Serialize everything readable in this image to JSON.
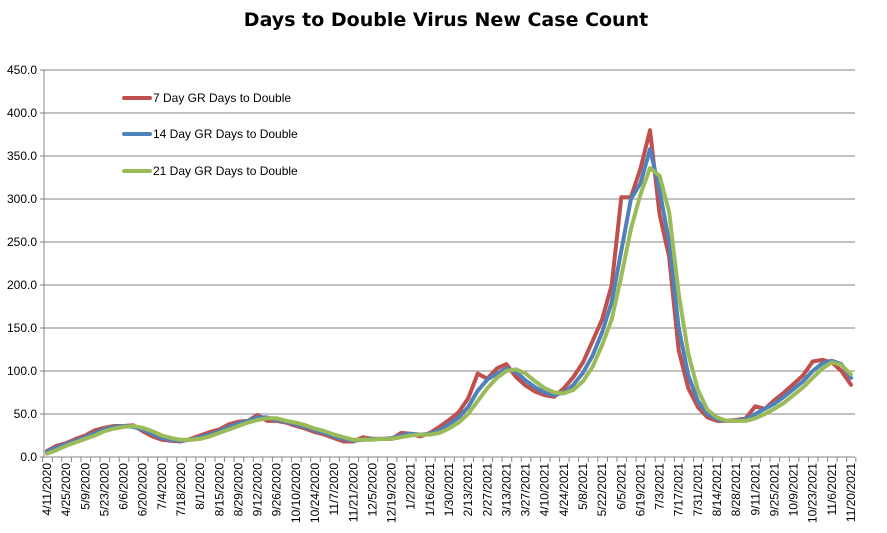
{
  "chart_data": {
    "type": "line",
    "title": "Days to Double Virus New Case Count",
    "xlabel": "",
    "ylabel": "",
    "ylim": [
      0,
      450
    ],
    "yticks": [
      "0.0",
      "50.0",
      "100.0",
      "150.0",
      "200.0",
      "250.0",
      "300.0",
      "350.0",
      "400.0",
      "450.0"
    ],
    "grid": "horizontal",
    "legend_position": "top-left",
    "x": [
      "4/11/2020",
      "4/18/2020",
      "4/25/2020",
      "5/2/2020",
      "5/9/2020",
      "5/16/2020",
      "5/23/2020",
      "5/30/2020",
      "6/6/2020",
      "6/13/2020",
      "6/20/2020",
      "6/27/2020",
      "7/4/2020",
      "7/11/2020",
      "7/18/2020",
      "7/25/2020",
      "8/1/2020",
      "8/8/2020",
      "8/15/2020",
      "8/22/2020",
      "8/29/2020",
      "9/5/2020",
      "9/12/2020",
      "9/19/2020",
      "9/26/2020",
      "10/3/2020",
      "10/10/2020",
      "10/17/2020",
      "10/24/2020",
      "10/31/2020",
      "11/7/2020",
      "11/14/2020",
      "11/21/2020",
      "11/28/2020",
      "12/5/2020",
      "12/12/2020",
      "12/19/2020",
      "12/26/2020",
      "1/2/2021",
      "1/9/2021",
      "1/16/2021",
      "1/23/2021",
      "1/30/2021",
      "2/6/2021",
      "2/13/2021",
      "2/20/2021",
      "2/27/2021",
      "3/6/2021",
      "3/13/2021",
      "3/20/2021",
      "3/27/2021",
      "4/3/2021",
      "4/10/2021",
      "4/17/2021",
      "4/24/2021",
      "5/1/2021",
      "5/8/2021",
      "5/15/2021",
      "5/22/2021",
      "5/29/2021",
      "6/5/2021",
      "6/12/2021",
      "6/19/2021",
      "6/26/2021",
      "7/3/2021",
      "7/10/2021",
      "7/17/2021",
      "7/24/2021",
      "7/31/2021",
      "8/7/2021",
      "8/14/2021",
      "8/21/2021",
      "8/28/2021",
      "9/4/2021",
      "9/11/2021",
      "9/18/2021",
      "9/25/2021",
      "10/2/2021",
      "10/9/2021",
      "10/16/2021",
      "10/23/2021",
      "10/30/2021",
      "11/6/2021",
      "11/13/2021",
      "11/20/2021"
    ],
    "x_label_every": 2,
    "series": [
      {
        "name": "7 Day GR Days to Double",
        "color": "#C0504D",
        "values": [
          7,
          13,
          16,
          21,
          25,
          31,
          34,
          36,
          36,
          37,
          30,
          24,
          20,
          19,
          18,
          21,
          25,
          29,
          32,
          38,
          41,
          42,
          49,
          42,
          42,
          40,
          36,
          33,
          29,
          26,
          22,
          18,
          18,
          23,
          21,
          21,
          21,
          28,
          27,
          24,
          28,
          35,
          43,
          52,
          68,
          97,
          91,
          103,
          108,
          93,
          83,
          76,
          72,
          70,
          80,
          93,
          110,
          135,
          160,
          200,
          302,
          302,
          335,
          380,
          282,
          233,
          124,
          80,
          58,
          46,
          42,
          42,
          43,
          45,
          59,
          56,
          66,
          75,
          85,
          95,
          111,
          113,
          110,
          100,
          84
        ]
      },
      {
        "name": "14 Day GR Days to Double",
        "color": "#4F81BD",
        "values": [
          6,
          11,
          15,
          19,
          23,
          28,
          32,
          35,
          36,
          35,
          32,
          27,
          22,
          20,
          19,
          20,
          23,
          26,
          30,
          35,
          39,
          42,
          46,
          46,
          43,
          41,
          38,
          35,
          31,
          28,
          24,
          21,
          19,
          20,
          21,
          21,
          22,
          25,
          27,
          26,
          27,
          31,
          38,
          46,
          58,
          77,
          90,
          97,
          103,
          99,
          89,
          81,
          75,
          72,
          75,
          84,
          98,
          118,
          145,
          180,
          240,
          300,
          318,
          358,
          310,
          250,
          150,
          95,
          65,
          50,
          44,
          42,
          42,
          44,
          50,
          56,
          62,
          70,
          79,
          88,
          100,
          109,
          112,
          108,
          92
        ]
      },
      {
        "name": "21 Day GR Days to Double",
        "color": "#9BBB59",
        "values": [
          4,
          8,
          13,
          17,
          21,
          25,
          30,
          33,
          35,
          36,
          34,
          30,
          25,
          22,
          20,
          20,
          21,
          24,
          28,
          32,
          36,
          40,
          43,
          45,
          45,
          42,
          40,
          37,
          33,
          30,
          26,
          23,
          20,
          20,
          20,
          21,
          21,
          23,
          25,
          26,
          26,
          28,
          33,
          40,
          50,
          65,
          80,
          92,
          100,
          102,
          97,
          88,
          80,
          75,
          74,
          78,
          88,
          105,
          130,
          160,
          210,
          265,
          305,
          336,
          327,
          285,
          190,
          120,
          78,
          55,
          46,
          42,
          42,
          42,
          45,
          50,
          56,
          63,
          72,
          81,
          92,
          103,
          110,
          107,
          96
        ]
      }
    ]
  }
}
